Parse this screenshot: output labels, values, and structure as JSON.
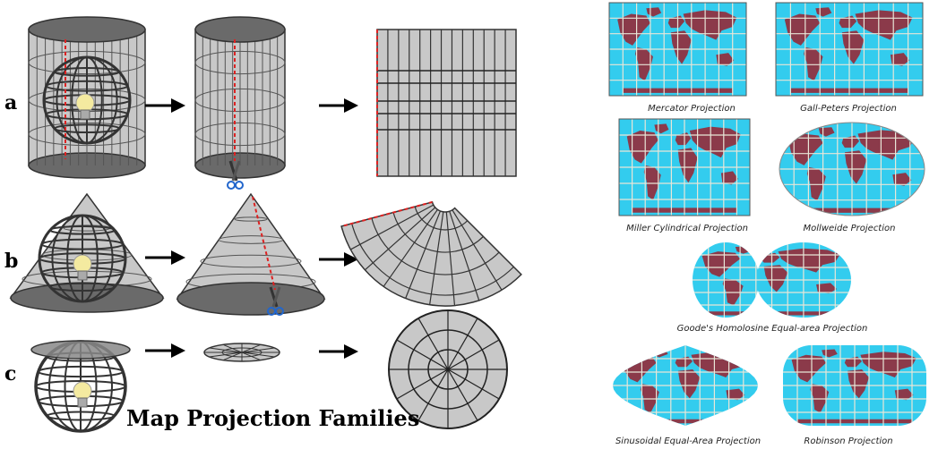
{
  "title": "Map Projection Families",
  "rows": [
    {
      "letter": "a"
    },
    {
      "letter": "b"
    },
    {
      "letter": "c"
    }
  ],
  "projections": [
    {
      "key": "mercator",
      "label": "Mercator Projection"
    },
    {
      "key": "gall-peters",
      "label": "Gall-Peters Projection"
    },
    {
      "key": "miller",
      "label": "Miller Cylindrical Projection"
    },
    {
      "key": "mollweide",
      "label": "Mollweide Projection"
    },
    {
      "key": "goode",
      "label": "Goode's Homolosine Equal-area Projection"
    },
    {
      "key": "sinusoidal",
      "label": "Sinusoidal Equal-Area Projection"
    },
    {
      "key": "robinson",
      "label": "Robinson Projection"
    }
  ],
  "colors": {
    "ocean": "#33ccee",
    "land": "#8b3a4a",
    "grid": "#e8e6d8",
    "surface": "#c8c8c8",
    "surface_dark": "#555555",
    "cut_line": "#dd2222",
    "bulb": "#f4eaa0",
    "scissors": "#2266cc"
  }
}
